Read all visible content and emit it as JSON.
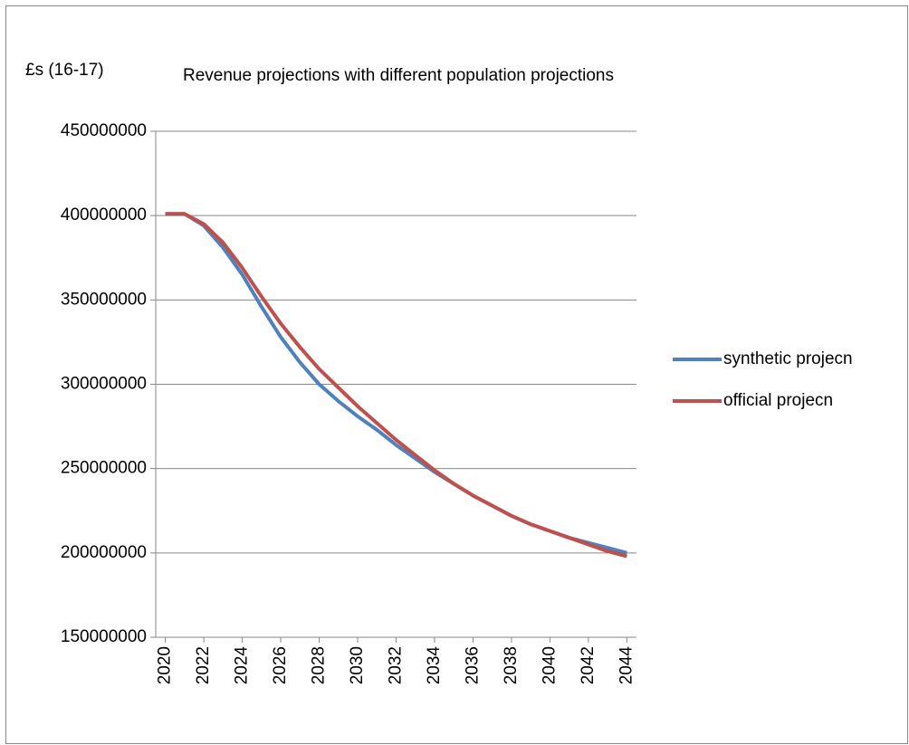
{
  "chart_data": {
    "type": "line",
    "title": "Revenue projections with different population projections",
    "y_label": "£s  (16-17)",
    "x": [
      2020,
      2021,
      2022,
      2023,
      2024,
      2025,
      2026,
      2027,
      2028,
      2029,
      2030,
      2031,
      2032,
      2033,
      2034,
      2035,
      2036,
      2037,
      2038,
      2039,
      2040,
      2041,
      2042,
      2043,
      2044
    ],
    "xlim": [
      2019.5,
      2044.5
    ],
    "xticks": [
      2020,
      2022,
      2024,
      2026,
      2028,
      2030,
      2032,
      2034,
      2036,
      2038,
      2040,
      2042,
      2044
    ],
    "ylim": [
      150000000,
      450000000
    ],
    "yticks": [
      150000000,
      200000000,
      250000000,
      300000000,
      350000000,
      400000000,
      450000000
    ],
    "grid": true,
    "legend": "right",
    "series": [
      {
        "name": "synthetic projecn",
        "color": "#4f81bd",
        "values": [
          401000000,
          401000000,
          394000000,
          381000000,
          365000000,
          346000000,
          328000000,
          313000000,
          300000000,
          290000000,
          281000000,
          273000000,
          264000000,
          256000000,
          248000000,
          241000000,
          234000000,
          228000000,
          222000000,
          217000000,
          213000000,
          209000000,
          206000000,
          203000000,
          200000000
        ]
      },
      {
        "name": "official projecn",
        "color": "#c0504d",
        "values": [
          401000000,
          401000000,
          395000000,
          384000000,
          369000000,
          352000000,
          336000000,
          322000000,
          309000000,
          298000000,
          287000000,
          277000000,
          267000000,
          258000000,
          249000000,
          241000000,
          234000000,
          228000000,
          222000000,
          217000000,
          213000000,
          209000000,
          205000000,
          201000000,
          198000000
        ]
      }
    ]
  }
}
